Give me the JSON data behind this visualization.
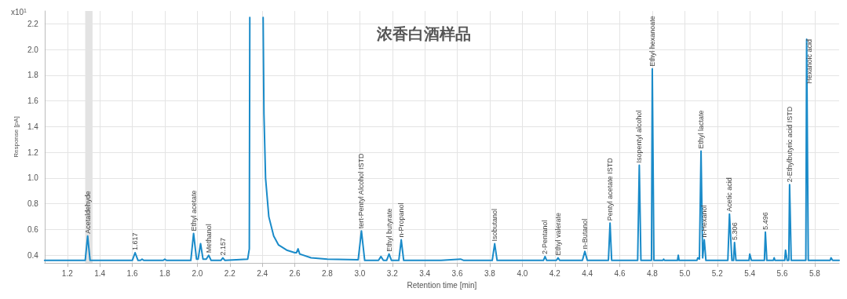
{
  "chart_data": {
    "type": "line",
    "title": "浓香白酒样品",
    "xlabel": "Retention time [min]",
    "ylabel": "Response [pA]",
    "x": [
      1.06,
      1.15,
      1.31,
      1.325,
      1.34,
      1.6,
      1.617,
      1.635,
      1.65,
      1.66,
      1.67,
      1.79,
      1.8,
      1.81,
      1.96,
      1.977,
      1.995,
      2.005,
      2.02,
      2.035,
      2.055,
      2.07,
      2.085,
      2.145,
      2.157,
      2.17,
      2.31,
      2.32,
      2.323,
      2.365,
      2.405,
      2.41,
      2.42,
      2.44,
      2.47,
      2.5,
      2.55,
      2.6,
      2.61,
      2.62,
      2.63,
      2.7,
      2.8,
      2.99,
      3.01,
      3.03,
      3.115,
      3.13,
      3.145,
      3.165,
      3.18,
      3.195,
      3.24,
      3.255,
      3.27,
      3.5,
      3.62,
      3.64,
      3.815,
      3.83,
      3.845,
      4.13,
      4.14,
      4.15,
      4.21,
      4.22,
      4.23,
      4.37,
      4.385,
      4.4,
      4.53,
      4.54,
      4.55,
      4.71,
      4.72,
      4.73,
      4.795,
      4.8,
      4.81,
      4.865,
      4.87,
      4.875,
      4.955,
      4.96,
      4.965,
      5.075,
      5.08,
      5.09,
      5.1,
      5.11,
      5.12,
      5.13,
      5.265,
      5.275,
      5.29,
      5.3,
      5.306,
      5.315,
      5.395,
      5.4,
      5.41,
      5.49,
      5.496,
      5.505,
      5.545,
      5.55,
      5.555,
      5.615,
      5.62,
      5.63,
      5.64,
      5.645,
      5.655,
      5.745,
      5.75,
      5.76,
      5.895,
      5.9,
      5.91,
      5.95
    ],
    "values": [
      0.36,
      0.36,
      0.36,
      0.55,
      0.36,
      0.36,
      0.42,
      0.36,
      0.36,
      0.37,
      0.36,
      0.36,
      0.37,
      0.36,
      0.36,
      0.57,
      0.37,
      0.37,
      0.49,
      0.37,
      0.37,
      0.4,
      0.36,
      0.36,
      0.38,
      0.36,
      0.37,
      0.45,
      2.25,
      null,
      2.25,
      1.5,
      1.0,
      0.7,
      0.55,
      0.48,
      0.44,
      0.42,
      0.42,
      0.45,
      0.41,
      0.38,
      0.37,
      0.365,
      0.59,
      0.36,
      0.36,
      0.39,
      0.36,
      0.36,
      0.41,
      0.36,
      0.36,
      0.52,
      0.36,
      0.36,
      0.37,
      0.36,
      0.36,
      0.49,
      0.36,
      0.36,
      0.39,
      0.36,
      0.36,
      0.38,
      0.36,
      0.36,
      0.43,
      0.36,
      0.36,
      0.65,
      0.36,
      0.36,
      1.1,
      0.36,
      0.36,
      1.85,
      0.36,
      0.36,
      0.37,
      0.36,
      0.36,
      0.4,
      0.36,
      0.36,
      0.38,
      0.37,
      1.21,
      0.38,
      0.52,
      0.36,
      0.36,
      0.72,
      0.36,
      0.36,
      0.5,
      0.36,
      0.36,
      0.41,
      0.36,
      0.36,
      0.58,
      0.36,
      0.36,
      0.38,
      0.36,
      0.36,
      0.44,
      0.36,
      0.36,
      0.95,
      0.36,
      0.36,
      2.08,
      0.36,
      0.36,
      0.38,
      0.36,
      0.36
    ],
    "color": "#1a8bc9",
    "marker": "none",
    "line_style": "solid",
    "grid": true,
    "xlim": [
      1.06,
      5.95
    ],
    "xticks": [
      1.2,
      1.4,
      1.6,
      1.8,
      {
        "value": 2,
        "label": "2.0"
      },
      2.2,
      2.4,
      2.6,
      2.8,
      {
        "value": 3,
        "label": "3.0"
      },
      3.2,
      3.4,
      3.6,
      3.8,
      {
        "value": 4,
        "label": "4.0"
      },
      4.2,
      4.4,
      4.6,
      4.8,
      {
        "value": 5,
        "label": "5.0"
      },
      5.2,
      5.4,
      5.6,
      5.8
    ],
    "ylim": [
      0.34,
      2.3
    ],
    "yticks": [
      0.4,
      0.6,
      0.8,
      {
        "value": 1,
        "label": "1.0"
      },
      1.2,
      1.4,
      1.6,
      1.8,
      {
        "value": 2,
        "label": "2.0"
      },
      2.2
    ],
    "bands": [
      {
        "axis": "x",
        "from": 1.31,
        "to": 1.355,
        "color": "#e3e3e3"
      }
    ],
    "annotations": [
      "x10$^{1}$",
      {
        "text": "Acetaldehyde",
        "x": 1.325,
        "y": 0.55
      },
      {
        "text": "1.617",
        "x": 1.617,
        "y": 0.42
      },
      {
        "text": "Ethyl acetate",
        "x": 1.977,
        "y": 0.57
      },
      {
        "text": "Methanol",
        "x": 2.07,
        "y": 0.4
      },
      {
        "text": "2.157",
        "x": 2.157,
        "y": 0.38
      },
      {
        "text": "tert-Pentyl Alcohol ISTD",
        "x": 3.01,
        "y": 0.59
      },
      {
        "text": "Ethyl butyrate",
        "x": 3.18,
        "y": 0.41
      },
      {
        "text": "n-Propanol",
        "x": 3.255,
        "y": 0.52
      },
      {
        "text": "Isobutanol",
        "x": 3.83,
        "y": 0.49
      },
      {
        "text": "2-Pentanol",
        "x": 4.14,
        "y": 0.39
      },
      {
        "text": "Ethyl valerate",
        "x": 4.22,
        "y": 0.38
      },
      {
        "text": "n-Butanol",
        "x": 4.385,
        "y": 0.43
      },
      {
        "text": "Pentyl acetate ISTD",
        "x": 4.54,
        "y": 0.65
      },
      {
        "text": "Isopentyl alcohol",
        "x": 4.72,
        "y": 1.1
      },
      {
        "text": "Ethyl hexanoate",
        "x": 4.8,
        "y": 1.85
      },
      {
        "text": "Ethyl lactate",
        "x": 5.1,
        "y": 1.21
      },
      {
        "text": "n-Hexanol",
        "x": 5.12,
        "y": 0.52
      },
      {
        "text": "Acetic acid",
        "x": 5.275,
        "y": 0.72
      },
      {
        "text": "5.306",
        "x": 5.306,
        "y": 0.5
      },
      {
        "text": "5.496",
        "x": 5.496,
        "y": 0.58
      },
      {
        "text": "2-Ethylbutyric acid ISTD",
        "x": 5.645,
        "y": 0.95
      },
      {
        "text": "Hexanoic acid",
        "x": 5.75,
        "y": 2.08
      }
    ]
  }
}
